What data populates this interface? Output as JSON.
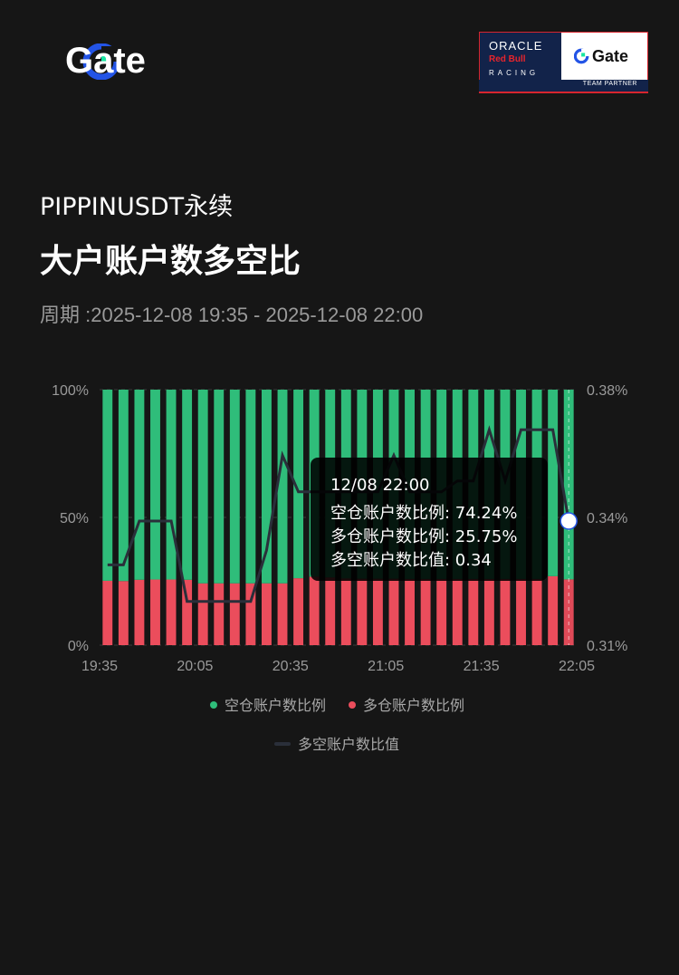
{
  "brand": {
    "logo_text": "Gate",
    "accent": "#2354e6",
    "accent2": "#17e5a1"
  },
  "partner": {
    "oracle": "ORACLE",
    "redbull": "Red Bull",
    "racing": "RACING",
    "gate": "Gate",
    "tag": "TEAM PARTNER"
  },
  "header": {
    "symbol": "PIPPINUSDT永续",
    "title": "大户账户数多空比",
    "period": "周期 :2025-12-08 19:35 - 2025-12-08 22:00"
  },
  "tooltip": {
    "time": "12/08 22:00",
    "line1": "空仓账户数比例: 74.24%",
    "line2": "多仓账户数比例: 25.75%",
    "line3": "多空账户数比值: 0.34"
  },
  "legend": {
    "short": "空仓账户数比例",
    "long": "多仓账户数比例",
    "ratio": "多空账户数比值"
  },
  "chart_data": {
    "type": "bar",
    "stacked": true,
    "x": [
      "19:35",
      "19:40",
      "19:45",
      "19:50",
      "19:55",
      "20:00",
      "20:05",
      "20:10",
      "20:15",
      "20:20",
      "20:25",
      "20:30",
      "20:35",
      "20:40",
      "20:45",
      "20:50",
      "20:55",
      "21:00",
      "21:05",
      "21:10",
      "21:15",
      "21:20",
      "21:25",
      "21:30",
      "21:35",
      "21:40",
      "21:45",
      "21:50",
      "21:55",
      "22:00"
    ],
    "x_tick_labels": [
      "19:35",
      "20:05",
      "20:35",
      "21:05",
      "21:35",
      "22:05"
    ],
    "left_ticks": [
      "0%",
      "50%",
      "100%"
    ],
    "right_ticks": [
      "0.31%",
      "0.34%",
      "0.38%"
    ],
    "left_ylim": [
      0,
      100
    ],
    "right_ylim": [
      0.31,
      0.38
    ],
    "colors": {
      "short": "#2fbd7a",
      "long": "#eb4d5c",
      "line": "#2a2f3a"
    },
    "series": [
      {
        "name": "多仓账户数比例",
        "values": [
          25.2,
          25.1,
          25.6,
          25.7,
          25.7,
          25.6,
          24.2,
          24.2,
          24.2,
          24.2,
          24.2,
          24.2,
          26.2,
          26.8,
          26.5,
          26.1,
          26.0,
          26.0,
          26.0,
          25.9,
          25.9,
          25.9,
          25.9,
          25.9,
          25.9,
          25.9,
          25.9,
          25.9,
          27.0,
          25.75
        ]
      },
      {
        "name": "空仓账户数比例",
        "values": [
          74.8,
          74.9,
          74.4,
          74.3,
          74.3,
          74.4,
          75.8,
          75.8,
          75.8,
          75.8,
          75.8,
          75.8,
          73.8,
          73.2,
          73.5,
          73.9,
          74.0,
          74.0,
          74.0,
          74.1,
          74.1,
          74.1,
          74.1,
          74.1,
          74.1,
          74.1,
          74.1,
          74.1,
          73.0,
          74.24
        ]
      },
      {
        "name": "多空账户数比值",
        "axis": "right",
        "values": [
          0.332,
          0.332,
          0.344,
          0.344,
          0.344,
          0.322,
          0.322,
          0.322,
          0.322,
          0.322,
          0.336,
          0.362,
          0.352,
          0.352,
          0.352,
          0.352,
          0.352,
          0.352,
          0.362,
          0.352,
          0.352,
          0.352,
          0.355,
          0.355,
          0.369,
          0.355,
          0.369,
          0.369,
          0.369,
          0.344
        ]
      }
    ]
  }
}
